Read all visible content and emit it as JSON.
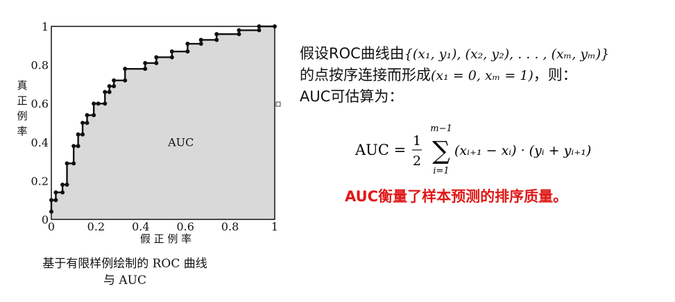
{
  "chart_data": {
    "type": "line",
    "subtype": "roc-step-curve-with-filled-area",
    "xlabel": "假 正 例 率",
    "ylabel": "真 正 例 率",
    "area_label": "AUC",
    "xlim": [
      0,
      1
    ],
    "ylim": [
      0,
      1
    ],
    "x_ticks": [
      "0",
      "0.2",
      "0.4",
      "0.6",
      "0.8",
      "1"
    ],
    "y_ticks": [
      "0",
      "0.2",
      "0.4",
      "0.6",
      "0.8",
      "1"
    ],
    "x_tick_values": [
      0,
      0.2,
      0.4,
      0.6,
      0.8,
      1.0
    ],
    "y_tick_values": [
      0,
      0.2,
      0.4,
      0.6,
      0.8,
      1.0
    ],
    "grid": false,
    "fill_color": "#d9d9d9",
    "line_color": "#111111",
    "series": [
      {
        "points": [
          [
            0.0,
            0.04
          ],
          [
            0.0,
            0.1
          ],
          [
            0.02,
            0.1
          ],
          [
            0.02,
            0.14
          ],
          [
            0.05,
            0.14
          ],
          [
            0.05,
            0.18
          ],
          [
            0.07,
            0.18
          ],
          [
            0.07,
            0.29
          ],
          [
            0.1,
            0.29
          ],
          [
            0.1,
            0.38
          ],
          [
            0.12,
            0.38
          ],
          [
            0.12,
            0.44
          ],
          [
            0.14,
            0.44
          ],
          [
            0.14,
            0.5
          ],
          [
            0.16,
            0.5
          ],
          [
            0.16,
            0.54
          ],
          [
            0.19,
            0.54
          ],
          [
            0.19,
            0.6
          ],
          [
            0.21,
            0.6
          ],
          [
            0.24,
            0.6
          ],
          [
            0.24,
            0.66
          ],
          [
            0.26,
            0.66
          ],
          [
            0.26,
            0.69
          ],
          [
            0.28,
            0.69
          ],
          [
            0.28,
            0.72
          ],
          [
            0.33,
            0.72
          ],
          [
            0.33,
            0.78
          ],
          [
            0.42,
            0.78
          ],
          [
            0.42,
            0.81
          ],
          [
            0.47,
            0.81
          ],
          [
            0.47,
            0.84
          ],
          [
            0.54,
            0.84
          ],
          [
            0.54,
            0.87
          ],
          [
            0.61,
            0.87
          ],
          [
            0.61,
            0.91
          ],
          [
            0.67,
            0.91
          ],
          [
            0.67,
            0.93
          ],
          [
            0.74,
            0.93
          ],
          [
            0.74,
            0.96
          ],
          [
            0.84,
            0.96
          ],
          [
            0.84,
            0.98
          ],
          [
            0.93,
            0.98
          ],
          [
            0.93,
            1.0
          ],
          [
            1.0,
            1.0
          ]
        ]
      }
    ]
  },
  "caption": [
    "基于有限样例绘制的 ROC 曲线",
    "与 AUC"
  ],
  "text": {
    "line1_prefix": "假设ROC曲线由",
    "line1_math": "{(x₁, y₁), (x₂, y₂), . . . , (xₘ, yₘ)}",
    "line2_prefix": "的点按序连接而形成",
    "line2_math": "(x₁ = 0, xₘ = 1)",
    "line2_suffix": "，则：",
    "line3": "AUC可估算为：",
    "formula_lhs": "AUC =",
    "formula_frac_num": "1",
    "formula_frac_den": "2",
    "formula_sum_top": "m−1",
    "formula_sum_bottom": "i=1",
    "formula_body": "(xᵢ₊₁ − xᵢ) · (yᵢ + yᵢ₊₁)",
    "highlight": "AUC衡量了样本预测的排序质量。"
  }
}
